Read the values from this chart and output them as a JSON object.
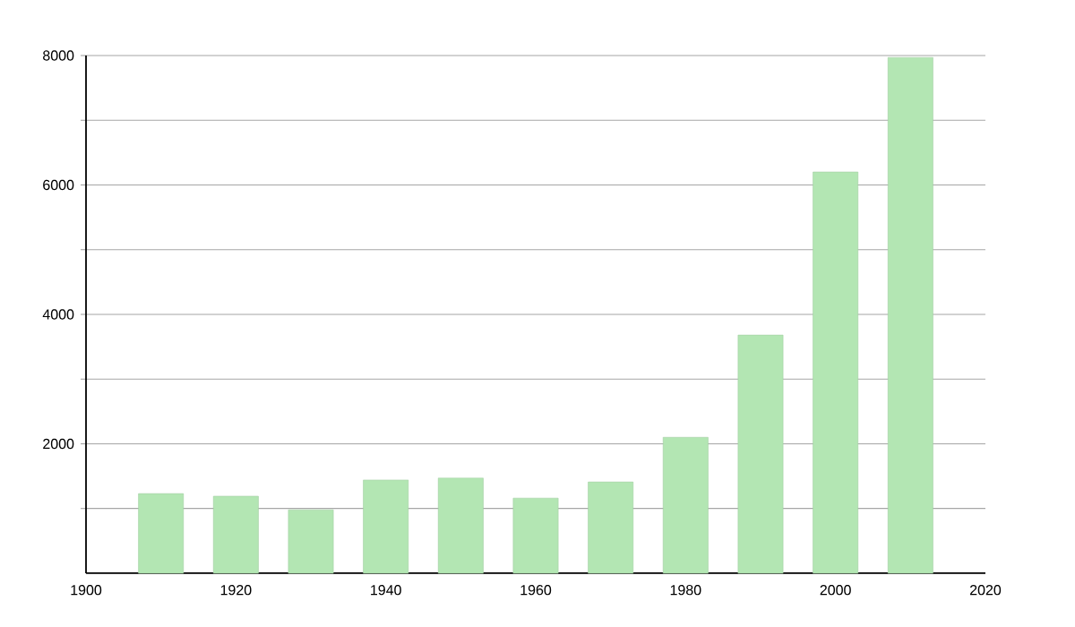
{
  "chart_data": {
    "type": "bar",
    "x": [
      1910,
      1920,
      1930,
      1940,
      1950,
      1960,
      1970,
      1980,
      1990,
      2000,
      2010
    ],
    "values": [
      1230,
      1190,
      980,
      1440,
      1470,
      1160,
      1410,
      2100,
      3680,
      6200,
      7970
    ],
    "color": "#b3e6b3",
    "xlim": [
      1900,
      2020
    ],
    "xticks": [
      1900,
      1920,
      1940,
      1960,
      1980,
      2000,
      2020
    ],
    "ylim": [
      0,
      8000
    ],
    "yticks": [
      {
        "value": 1000,
        "label": null
      },
      2000,
      {
        "value": 3000,
        "label": null
      },
      4000,
      {
        "value": 5000,
        "label": null
      },
      6000,
      {
        "value": 7000,
        "label": null
      },
      8000
    ],
    "grid": "y"
  }
}
